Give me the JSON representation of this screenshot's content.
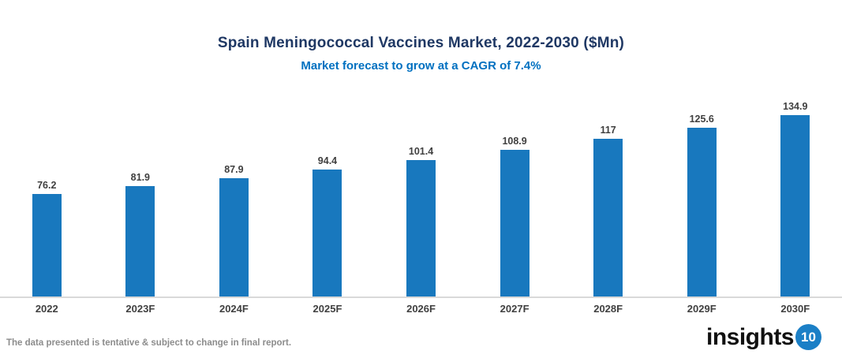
{
  "header": {
    "title": "Spain Meningococcal Vaccines Market, 2022-2030 ($Mn)",
    "subtitle": "Market forecast to grow at a CAGR of 7.4%"
  },
  "chart_data": {
    "type": "bar",
    "title": "Spain Meningococcal Vaccines Market, 2022-2030 ($Mn)",
    "subtitle": "Market forecast to grow at a CAGR of 7.4%",
    "categories": [
      "2022",
      "2023F",
      "2024F",
      "2025F",
      "2026F",
      "2027F",
      "2028F",
      "2029F",
      "2030F"
    ],
    "values": [
      76.2,
      81.9,
      87.9,
      94.4,
      101.4,
      108.9,
      117,
      125.6,
      134.9
    ],
    "xlabel": "",
    "ylabel": "",
    "ylim": [
      0,
      140
    ],
    "grid": false,
    "legend": "none",
    "data_labels": true,
    "bar_color": "#1878be",
    "axis_line_color": "#d9d9d9",
    "label_color": "#404040"
  },
  "footer": {
    "disclaimer": "The data presented is tentative & subject to change in final report.",
    "logo": {
      "text": "insights",
      "badge": "10",
      "badge_color": "#1b7fc6"
    }
  }
}
